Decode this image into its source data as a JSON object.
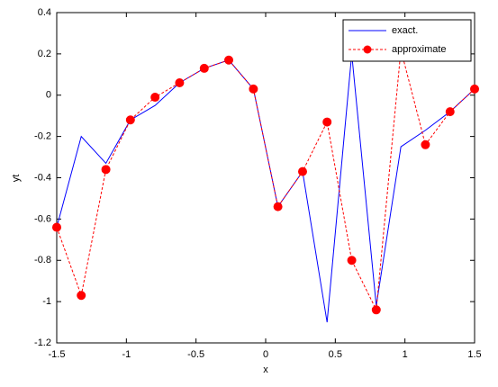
{
  "chart_data": {
    "type": "line",
    "x_label": "x",
    "y_label": "yt",
    "x": [
      -1.5,
      -1.324,
      -1.147,
      -0.971,
      -0.794,
      -0.618,
      -0.441,
      -0.265,
      -0.088,
      0.088,
      0.265,
      0.441,
      0.618,
      0.794,
      0.971,
      1.147,
      1.324,
      1.5
    ],
    "series": [
      {
        "name": "exact.",
        "color": "#0000ff",
        "dash": false,
        "marker": false,
        "values": [
          -0.64,
          -0.2,
          -0.33,
          -0.12,
          -0.05,
          0.06,
          0.13,
          0.17,
          0.03,
          -0.54,
          -0.37,
          -1.1,
          0.2,
          -1.02,
          -0.25,
          -0.17,
          -0.08,
          0.03
        ]
      },
      {
        "name": "approximate",
        "color": "#ff0000",
        "dash": true,
        "marker": true,
        "values": [
          -0.64,
          -0.97,
          -0.36,
          -0.12,
          -0.01,
          0.06,
          0.13,
          0.17,
          0.03,
          -0.54,
          -0.37,
          -0.13,
          -0.8,
          -1.04,
          0.22,
          -0.24,
          -0.08,
          0.03
        ]
      }
    ],
    "xlim": [
      -1.5,
      1.5
    ],
    "xticks": [
      -1.5,
      -1,
      -0.5,
      0,
      0.5,
      1,
      1.5
    ],
    "ylim": [
      -1.2,
      0.4
    ],
    "yticks": [
      -1.2,
      -1,
      -0.8,
      -0.6,
      -0.4,
      -0.2,
      0,
      0.2,
      0.4
    ],
    "legend": "northeast",
    "grid": false
  }
}
